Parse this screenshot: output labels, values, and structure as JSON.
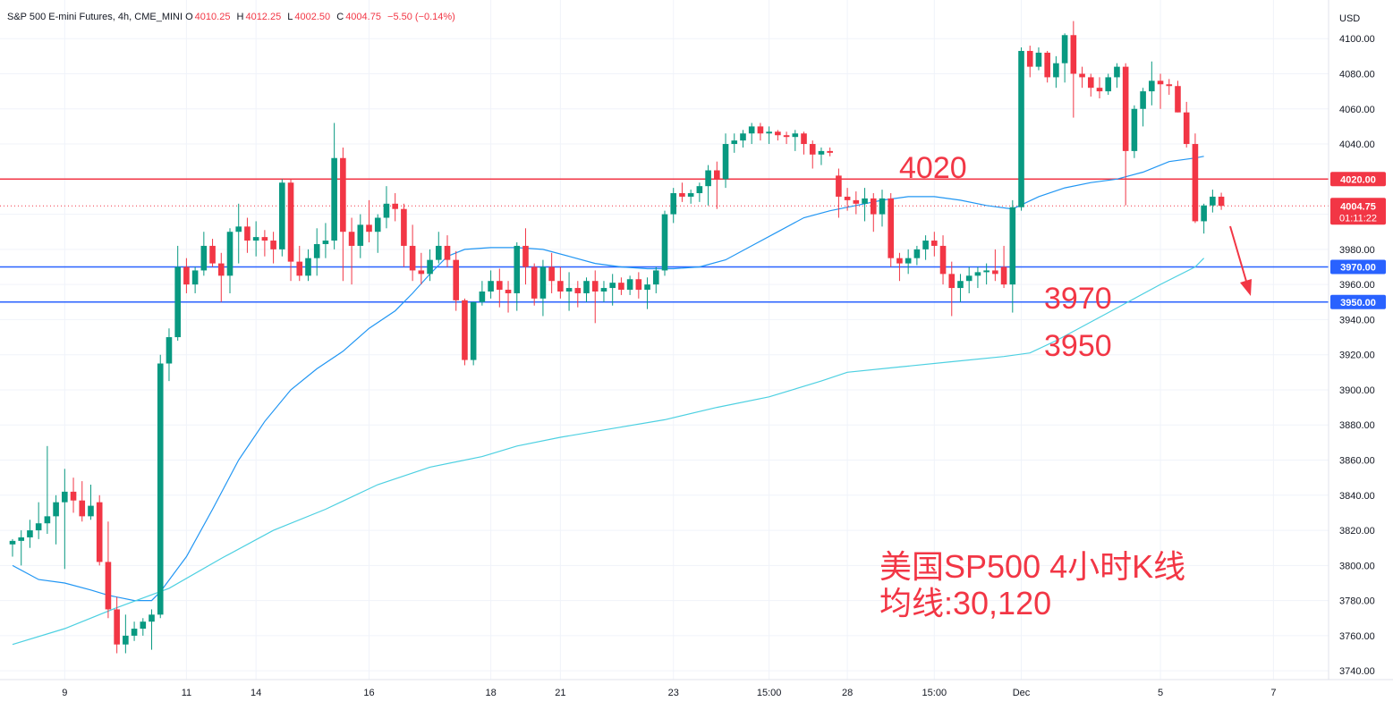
{
  "header": {
    "symbol": "S&P 500 E-mini Futures, 4h, CME_MINI",
    "open_label": "O",
    "open": "4010.25",
    "high_label": "H",
    "high": "4012.25",
    "low_label": "L",
    "low": "4002.50",
    "close_label": "C",
    "close": "4004.75",
    "change": "−5.50 (−0.14%)"
  },
  "colors": {
    "up": "#089981",
    "down": "#f23645",
    "ma30": "#2196f3",
    "ma120": "#4dd0e1",
    "resistance": "#f23645",
    "support": "#2962ff",
    "annotation": "#f23645",
    "grid": "#f0f3fa",
    "axis_text": "#131722"
  },
  "chart_data": {
    "type": "candlestick",
    "currency_label": "USD",
    "y_ticks": [
      "4100.00",
      "4080.00",
      "4060.00",
      "4040.00",
      "4020.00",
      "4000.00",
      "3980.00",
      "3960.00",
      "3940.00",
      "3920.00",
      "3900.00",
      "3880.00",
      "3860.00",
      "3840.00",
      "3820.00",
      "3800.00",
      "3780.00",
      "3760.00",
      "3740.00"
    ],
    "y_tick_values": [
      4100,
      4080,
      4060,
      4040,
      4020,
      4000,
      3980,
      3960,
      3940,
      3920,
      3900,
      3880,
      3860,
      3840,
      3820,
      3800,
      3780,
      3760,
      3740
    ],
    "ylim": [
      3735,
      4122
    ],
    "x_labels": [
      {
        "label": "9",
        "bar": 6
      },
      {
        "label": "11",
        "bar": 20
      },
      {
        "label": "14",
        "bar": 28
      },
      {
        "label": "16",
        "bar": 41
      },
      {
        "label": "18",
        "bar": 55
      },
      {
        "label": "21",
        "bar": 63
      },
      {
        "label": "23",
        "bar": 76
      },
      {
        "label": "15:00",
        "bar": 87
      },
      {
        "label": "28",
        "bar": 96
      },
      {
        "label": "15:00",
        "bar": 106
      },
      {
        "label": "Dec",
        "bar": 116
      },
      {
        "label": "5",
        "bar": 132
      },
      {
        "label": "7",
        "bar": 145
      }
    ],
    "candles": [
      [
        3812,
        3815,
        3805,
        3814
      ],
      [
        3814,
        3820,
        3800,
        3816
      ],
      [
        3816,
        3826,
        3810,
        3820
      ],
      [
        3820,
        3836,
        3815,
        3824
      ],
      [
        3824,
        3868,
        3818,
        3828
      ],
      [
        3828,
        3840,
        3812,
        3836
      ],
      [
        3836,
        3855,
        3798,
        3842
      ],
      [
        3842,
        3850,
        3830,
        3837
      ],
      [
        3837,
        3848,
        3825,
        3828
      ],
      [
        3828,
        3846,
        3826,
        3834
      ],
      [
        3836,
        3840,
        3800,
        3802
      ],
      [
        3802,
        3825,
        3770,
        3775
      ],
      [
        3775,
        3782,
        3750,
        3755
      ],
      [
        3755,
        3772,
        3750,
        3760
      ],
      [
        3760,
        3768,
        3757,
        3764
      ],
      [
        3764,
        3770,
        3760,
        3768
      ],
      [
        3768,
        3775,
        3752,
        3772
      ],
      [
        3772,
        3920,
        3770,
        3915
      ],
      [
        3915,
        3935,
        3905,
        3930
      ],
      [
        3930,
        3982,
        3928,
        3970
      ],
      [
        3970,
        3975,
        3955,
        3960
      ],
      [
        3960,
        3970,
        3955,
        3968
      ],
      [
        3968,
        3990,
        3965,
        3982
      ],
      [
        3982,
        3986,
        3970,
        3972
      ],
      [
        3972,
        3978,
        3950,
        3965
      ],
      [
        3965,
        3992,
        3955,
        3990
      ],
      [
        3990,
        4006,
        3972,
        3993
      ],
      [
        3993,
        3998,
        3978,
        3985
      ],
      [
        3985,
        3996,
        3976,
        3987
      ],
      [
        3987,
        3991,
        3976,
        3985
      ],
      [
        3985,
        3990,
        3972,
        3980
      ],
      [
        3980,
        4020,
        3976,
        4018
      ],
      [
        4018,
        4020,
        3962,
        3973
      ],
      [
        3973,
        3982,
        3962,
        3965
      ],
      [
        3965,
        3980,
        3962,
        3975
      ],
      [
        3975,
        3992,
        3965,
        3983
      ],
      [
        3983,
        3995,
        3975,
        3985
      ],
      [
        3985,
        4052,
        3980,
        4032
      ],
      [
        4032,
        4038,
        3962,
        3990
      ],
      [
        3990,
        3998,
        3960,
        3982
      ],
      [
        3982,
        4000,
        3975,
        3994
      ],
      [
        3994,
        4008,
        3984,
        3990
      ],
      [
        3990,
        4000,
        3978,
        3998
      ],
      [
        3998,
        4016,
        3992,
        4006
      ],
      [
        4006,
        4012,
        3996,
        4003
      ],
      [
        4003,
        4006,
        3970,
        3982
      ],
      [
        3982,
        3994,
        3962,
        3968
      ],
      [
        3968,
        3978,
        3960,
        3966
      ],
      [
        3966,
        3980,
        3962,
        3974
      ],
      [
        3974,
        3990,
        3972,
        3982
      ],
      [
        3982,
        3988,
        3970,
        3974
      ],
      [
        3974,
        3979,
        3945,
        3951
      ],
      [
        3951,
        3952,
        3914,
        3917
      ],
      [
        3917,
        3950,
        3914,
        3950
      ],
      [
        3950,
        3962,
        3948,
        3956
      ],
      [
        3956,
        3968,
        3952,
        3962
      ],
      [
        3962,
        3969,
        3947,
        3957
      ],
      [
        3957,
        3962,
        3944,
        3955
      ],
      [
        3955,
        3984,
        3945,
        3982
      ],
      [
        3982,
        3992,
        3960,
        3970
      ],
      [
        3970,
        3972,
        3948,
        3952
      ],
      [
        3952,
        3974,
        3942,
        3970
      ],
      [
        3970,
        3978,
        3955,
        3962
      ],
      [
        3962,
        3970,
        3952,
        3956
      ],
      [
        3956,
        3967,
        3945,
        3958
      ],
      [
        3958,
        3962,
        3947,
        3955
      ],
      [
        3955,
        3964,
        3950,
        3962
      ],
      [
        3962,
        3968,
        3938,
        3956
      ],
      [
        3956,
        3962,
        3950,
        3958
      ],
      [
        3958,
        3966,
        3948,
        3961
      ],
      [
        3961,
        3964,
        3954,
        3957
      ],
      [
        3957,
        3965,
        3954,
        3963
      ],
      [
        3963,
        3967,
        3952,
        3957
      ],
      [
        3957,
        3964,
        3946,
        3960
      ],
      [
        3960,
        3970,
        3955,
        3968
      ],
      [
        3968,
        4002,
        3965,
        4000
      ],
      [
        4000,
        4015,
        3995,
        4012
      ],
      [
        4012,
        4018,
        4007,
        4010
      ],
      [
        4010,
        4014,
        4006,
        4012
      ],
      [
        4012,
        4018,
        4007,
        4016
      ],
      [
        4016,
        4028,
        4005,
        4025
      ],
      [
        4025,
        4030,
        4003,
        4020
      ],
      [
        4020,
        4046,
        4015,
        4040
      ],
      [
        4040,
        4046,
        4035,
        4042
      ],
      [
        4042,
        4048,
        4038,
        4046
      ],
      [
        4046,
        4052,
        4040,
        4050
      ],
      [
        4050,
        4052,
        4042,
        4046
      ],
      [
        4046,
        4050,
        4040,
        4047
      ],
      [
        4047,
        4048,
        4042,
        4045
      ],
      [
        4045,
        4047,
        4040,
        4044
      ],
      [
        4044,
        4048,
        4036,
        4046
      ],
      [
        4046,
        4047,
        4034,
        4040
      ],
      [
        4040,
        4042,
        4026,
        4034
      ],
      [
        4034,
        4038,
        4028,
        4036
      ],
      [
        4036,
        4038,
        4033,
        4035
      ],
      [
        4022,
        4026,
        3998,
        4010
      ],
      [
        4010,
        4015,
        4002,
        4008
      ],
      [
        4008,
        4013,
        4000,
        4006
      ],
      [
        4006,
        4015,
        3996,
        4009
      ],
      [
        4009,
        4012,
        3990,
        4000
      ],
      [
        4000,
        4014,
        3993,
        4009
      ],
      [
        4009,
        4012,
        3970,
        3975
      ],
      [
        3975,
        3978,
        3962,
        3972
      ],
      [
        3972,
        3980,
        3966,
        3975
      ],
      [
        3975,
        3982,
        3971,
        3980
      ],
      [
        3980,
        3988,
        3974,
        3985
      ],
      [
        3985,
        3990,
        3976,
        3982
      ],
      [
        3982,
        3988,
        3960,
        3966
      ],
      [
        3966,
        3973,
        3942,
        3958
      ],
      [
        3958,
        3966,
        3950,
        3962
      ],
      [
        3962,
        3970,
        3955,
        3965
      ],
      [
        3965,
        3970,
        3958,
        3967
      ],
      [
        3967,
        3972,
        3960,
        3968
      ],
      [
        3968,
        3980,
        3962,
        3966
      ],
      [
        3970,
        3982,
        3958,
        3960
      ],
      [
        3960,
        4008,
        3944,
        4004
      ],
      [
        4004,
        4095,
        4002,
        4093
      ],
      [
        4093,
        4096,
        4078,
        4084
      ],
      [
        4084,
        4095,
        4082,
        4092
      ],
      [
        4092,
        4093,
        4075,
        4078
      ],
      [
        4078,
        4090,
        4072,
        4086
      ],
      [
        4086,
        4103,
        4075,
        4102
      ],
      [
        4102,
        4110,
        4055,
        4080
      ],
      [
        4080,
        4084,
        4072,
        4078
      ],
      [
        4078,
        4080,
        4067,
        4072
      ],
      [
        4072,
        4078,
        4066,
        4070
      ],
      [
        4070,
        4080,
        4068,
        4078
      ],
      [
        4078,
        4086,
        4072,
        4084
      ],
      [
        4084,
        4086,
        4005,
        4036
      ],
      [
        4036,
        4062,
        4032,
        4060
      ],
      [
        4060,
        4072,
        4050,
        4070
      ],
      [
        4070,
        4087,
        4062,
        4076
      ],
      [
        4076,
        4080,
        4060,
        4074
      ],
      [
        4074,
        4077,
        4068,
        4073
      ],
      [
        4073,
        4076,
        4058,
        4058
      ],
      [
        4058,
        4064,
        4038,
        4040
      ],
      [
        4040,
        4046,
        3995,
        3996
      ],
      [
        3996,
        4006,
        3989,
        4005
      ],
      [
        4005,
        4014,
        4001,
        4010
      ],
      [
        4010,
        4012.25,
        4002.5,
        4004.75
      ]
    ],
    "ma30": {
      "name": "",
      "points": [
        [
          0,
          3800
        ],
        [
          3,
          3792
        ],
        [
          6,
          3790
        ],
        [
          9,
          3786
        ],
        [
          11,
          3783
        ],
        [
          14,
          3780
        ],
        [
          16,
          3780
        ],
        [
          17,
          3785
        ],
        [
          20,
          3805
        ],
        [
          23,
          3832
        ],
        [
          26,
          3860
        ],
        [
          29,
          3882
        ],
        [
          32,
          3900
        ],
        [
          35,
          3912
        ],
        [
          38,
          3922
        ],
        [
          41,
          3935
        ],
        [
          44,
          3945
        ],
        [
          46,
          3955
        ],
        [
          48,
          3966
        ],
        [
          50,
          3976
        ],
        [
          52,
          3980
        ],
        [
          55,
          3981
        ],
        [
          58,
          3981
        ],
        [
          61,
          3980
        ],
        [
          64,
          3976
        ],
        [
          67,
          3972
        ],
        [
          70,
          3970
        ],
        [
          73,
          3969
        ],
        [
          76,
          3969
        ],
        [
          79,
          3970
        ],
        [
          82,
          3974
        ],
        [
          85,
          3982
        ],
        [
          88,
          3990
        ],
        [
          91,
          3998
        ],
        [
          94,
          4002
        ],
        [
          97,
          4005
        ],
        [
          100,
          4008
        ],
        [
          103,
          4010
        ],
        [
          106,
          4010
        ],
        [
          109,
          4008
        ],
        [
          112,
          4005
        ],
        [
          115,
          4003
        ],
        [
          118,
          4010
        ],
        [
          121,
          4015
        ],
        [
          124,
          4018
        ],
        [
          127,
          4020
        ],
        [
          130,
          4024
        ],
        [
          133,
          4030
        ],
        [
          136,
          4032
        ],
        [
          137,
          4033
        ]
      ]
    },
    "ma120": {
      "name": "",
      "points": [
        [
          0,
          3755
        ],
        [
          6,
          3764
        ],
        [
          12,
          3776
        ],
        [
          18,
          3787
        ],
        [
          24,
          3804
        ],
        [
          30,
          3820
        ],
        [
          36,
          3832
        ],
        [
          42,
          3846
        ],
        [
          48,
          3856
        ],
        [
          54,
          3862
        ],
        [
          58,
          3868
        ],
        [
          63,
          3873
        ],
        [
          69,
          3878
        ],
        [
          75,
          3883
        ],
        [
          81,
          3890
        ],
        [
          87,
          3896
        ],
        [
          93,
          3905
        ],
        [
          96,
          3910
        ],
        [
          102,
          3913
        ],
        [
          108,
          3916
        ],
        [
          114,
          3919
        ],
        [
          117,
          3921
        ],
        [
          120,
          3928
        ],
        [
          126,
          3944
        ],
        [
          132,
          3960
        ],
        [
          136,
          3970
        ],
        [
          137,
          3975
        ]
      ]
    },
    "hlines": [
      {
        "value": 4020,
        "label": "4020.00",
        "kind": "resistance"
      },
      {
        "value": 3970,
        "label": "3970.00",
        "kind": "support"
      },
      {
        "value": 3950,
        "label": "3950.00",
        "kind": "support"
      }
    ],
    "last_price": {
      "value": 4004.75,
      "label": "4004.75",
      "countdown": "01:11:22"
    },
    "annotations": {
      "r1": "4020",
      "s1": "3970",
      "s2": "3950",
      "caption_line1": "美国SP500 4小时K线",
      "caption_line2": "均线:30,120"
    }
  }
}
